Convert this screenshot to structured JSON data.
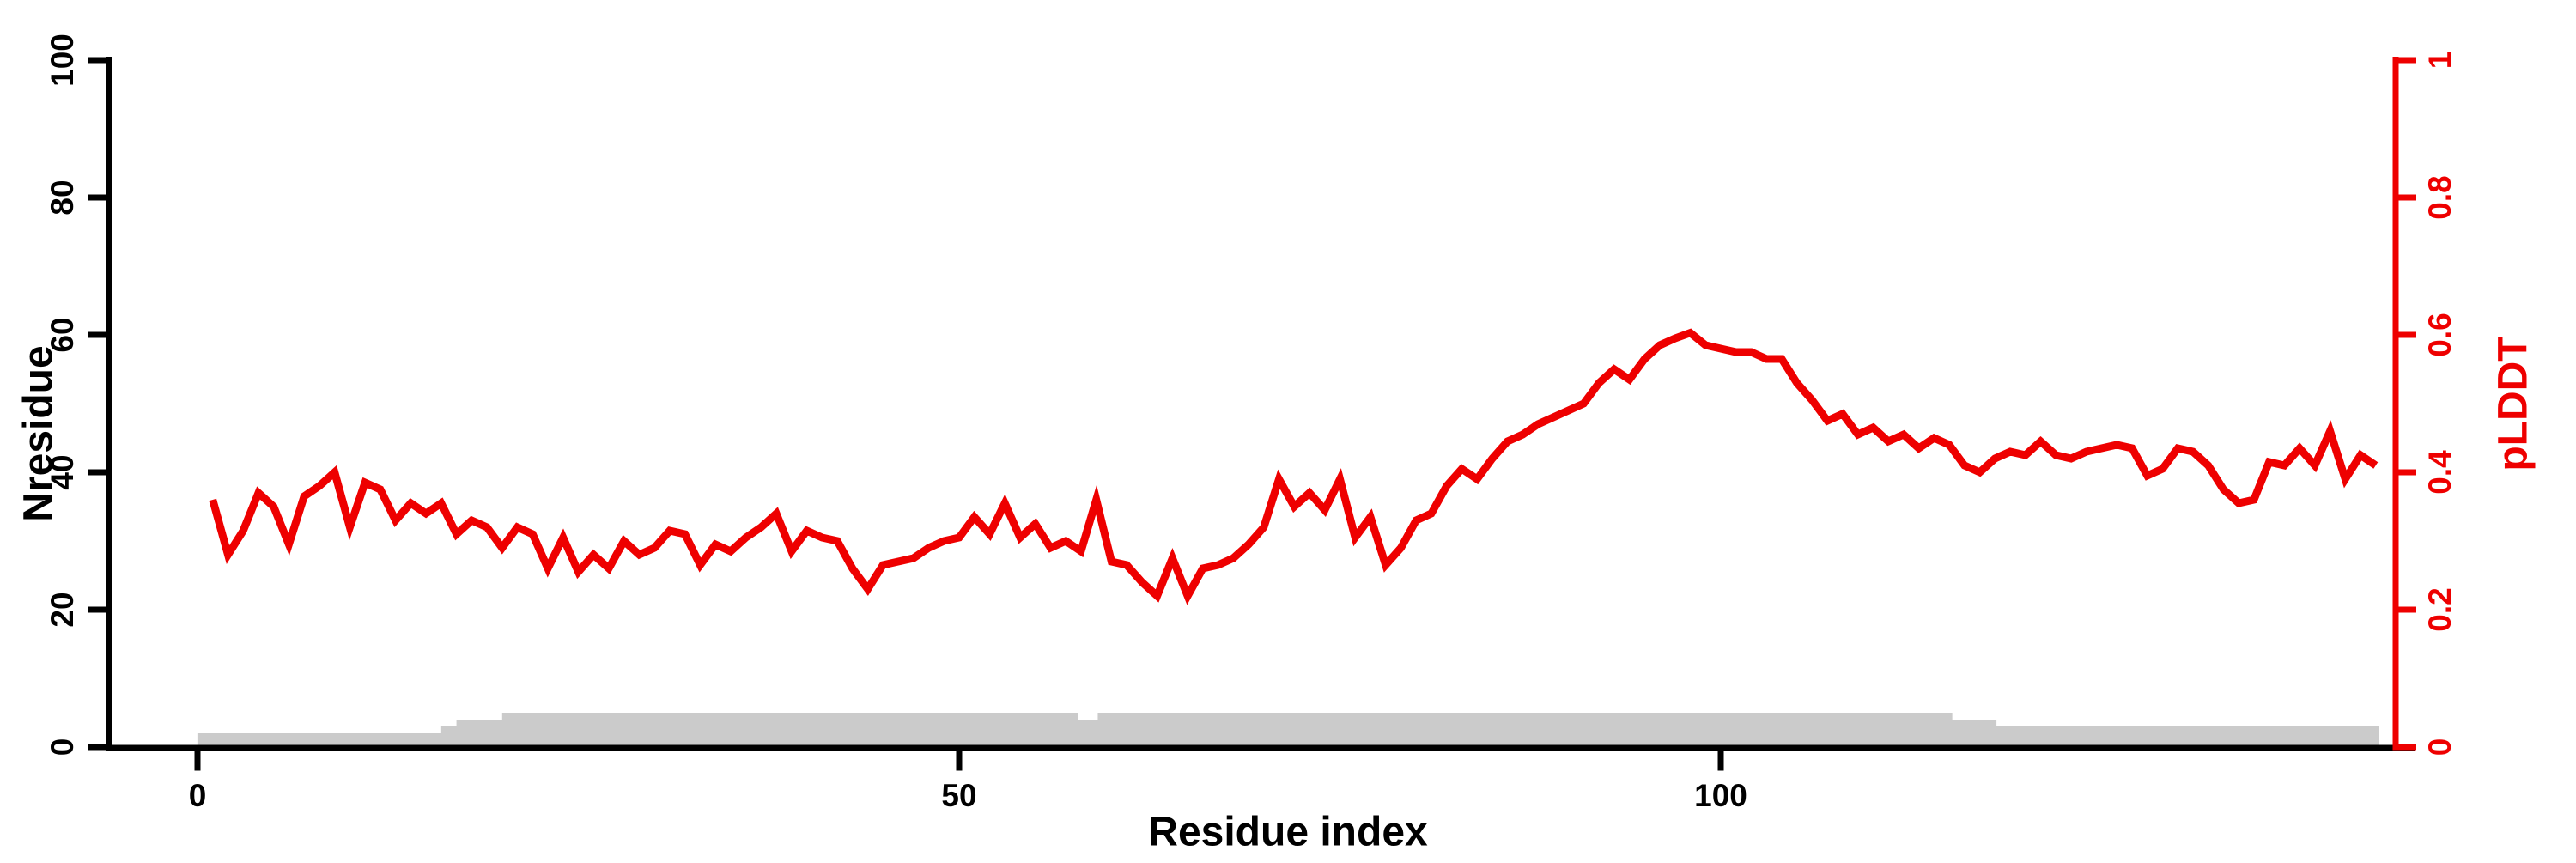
{
  "chart_data": {
    "type": "line",
    "title": "",
    "xlabel": "Residue index",
    "ylabel_left": "Nresidue",
    "ylabel_right": "pLDDT",
    "x_tick_labels": [
      "0",
      "50",
      "100"
    ],
    "x_tick_values": [
      0,
      50,
      100
    ],
    "left_tick_labels": [
      "0",
      "20",
      "40",
      "60",
      "80",
      "100"
    ],
    "left_tick_values": [
      0,
      20,
      40,
      60,
      80,
      100
    ],
    "right_tick_labels": [
      "0",
      "0.2",
      "0.4",
      "0.6",
      "0.8",
      "1"
    ],
    "right_tick_values": [
      0,
      0.2,
      0.4,
      0.6,
      0.8,
      1
    ],
    "left_ylim": [
      0,
      100
    ],
    "right_ylim": [
      0,
      1
    ],
    "xlim_residues": [
      -5.8,
      145.5
    ],
    "grid": "off",
    "legend": "none",
    "colors": {
      "plddt_line": "#EE0000",
      "right_axis": "#EE0000",
      "left_axis": "#000000",
      "x_axis": "#000000",
      "nresidue_area": "#CBCBCB",
      "background": "#FFFFFF"
    },
    "series": [
      {
        "name": "pLDDT",
        "axis": "right",
        "type": "line",
        "x_start": 1,
        "x_step": 1,
        "values": [
          0.36,
          0.28,
          0.315,
          0.37,
          0.35,
          0.295,
          0.365,
          0.38,
          0.4,
          0.32,
          0.385,
          0.375,
          0.33,
          0.355,
          0.34,
          0.355,
          0.31,
          0.33,
          0.32,
          0.29,
          0.32,
          0.31,
          0.26,
          0.305,
          0.255,
          0.28,
          0.26,
          0.3,
          0.28,
          0.29,
          0.315,
          0.31,
          0.265,
          0.295,
          0.285,
          0.305,
          0.32,
          0.34,
          0.285,
          0.315,
          0.305,
          0.3,
          0.26,
          0.23,
          0.265,
          0.27,
          0.275,
          0.29,
          0.3,
          0.305,
          0.335,
          0.31,
          0.355,
          0.305,
          0.325,
          0.29,
          0.3,
          0.285,
          0.36,
          0.27,
          0.265,
          0.24,
          0.22,
          0.275,
          0.22,
          0.26,
          0.265,
          0.275,
          0.295,
          0.32,
          0.39,
          0.35,
          0.37,
          0.345,
          0.39,
          0.305,
          0.335,
          0.265,
          0.29,
          0.33,
          0.34,
          0.38,
          0.405,
          0.39,
          0.42,
          0.445,
          0.455,
          0.47,
          0.48,
          0.49,
          0.5,
          0.53,
          0.55,
          0.535,
          0.565,
          0.585,
          0.595,
          0.603,
          0.585,
          0.58,
          0.575,
          0.575,
          0.565,
          0.565,
          0.53,
          0.505,
          0.475,
          0.485,
          0.455,
          0.465,
          0.445,
          0.455,
          0.435,
          0.45,
          0.44,
          0.41,
          0.4,
          0.42,
          0.43,
          0.425,
          0.445,
          0.425,
          0.42,
          0.43,
          0.435,
          0.44,
          0.435,
          0.395,
          0.405,
          0.435,
          0.43,
          0.41,
          0.375,
          0.355,
          0.36,
          0.415,
          0.41,
          0.435,
          0.41,
          0.46,
          0.39,
          0.425,
          0.41
        ]
      },
      {
        "name": "Nresidue",
        "axis": "left",
        "type": "step-area",
        "segments": [
          {
            "from": 0.05,
            "to": 16,
            "value": 2
          },
          {
            "from": 16,
            "to": 17,
            "value": 3
          },
          {
            "from": 17,
            "to": 20,
            "value": 4
          },
          {
            "from": 20,
            "to": 57.8,
            "value": 5
          },
          {
            "from": 57.8,
            "to": 59.1,
            "value": 4
          },
          {
            "from": 59.1,
            "to": 115.2,
            "value": 5
          },
          {
            "from": 115.2,
            "to": 118.1,
            "value": 4
          },
          {
            "from": 118.1,
            "to": 143.2,
            "value": 3
          }
        ]
      }
    ]
  }
}
